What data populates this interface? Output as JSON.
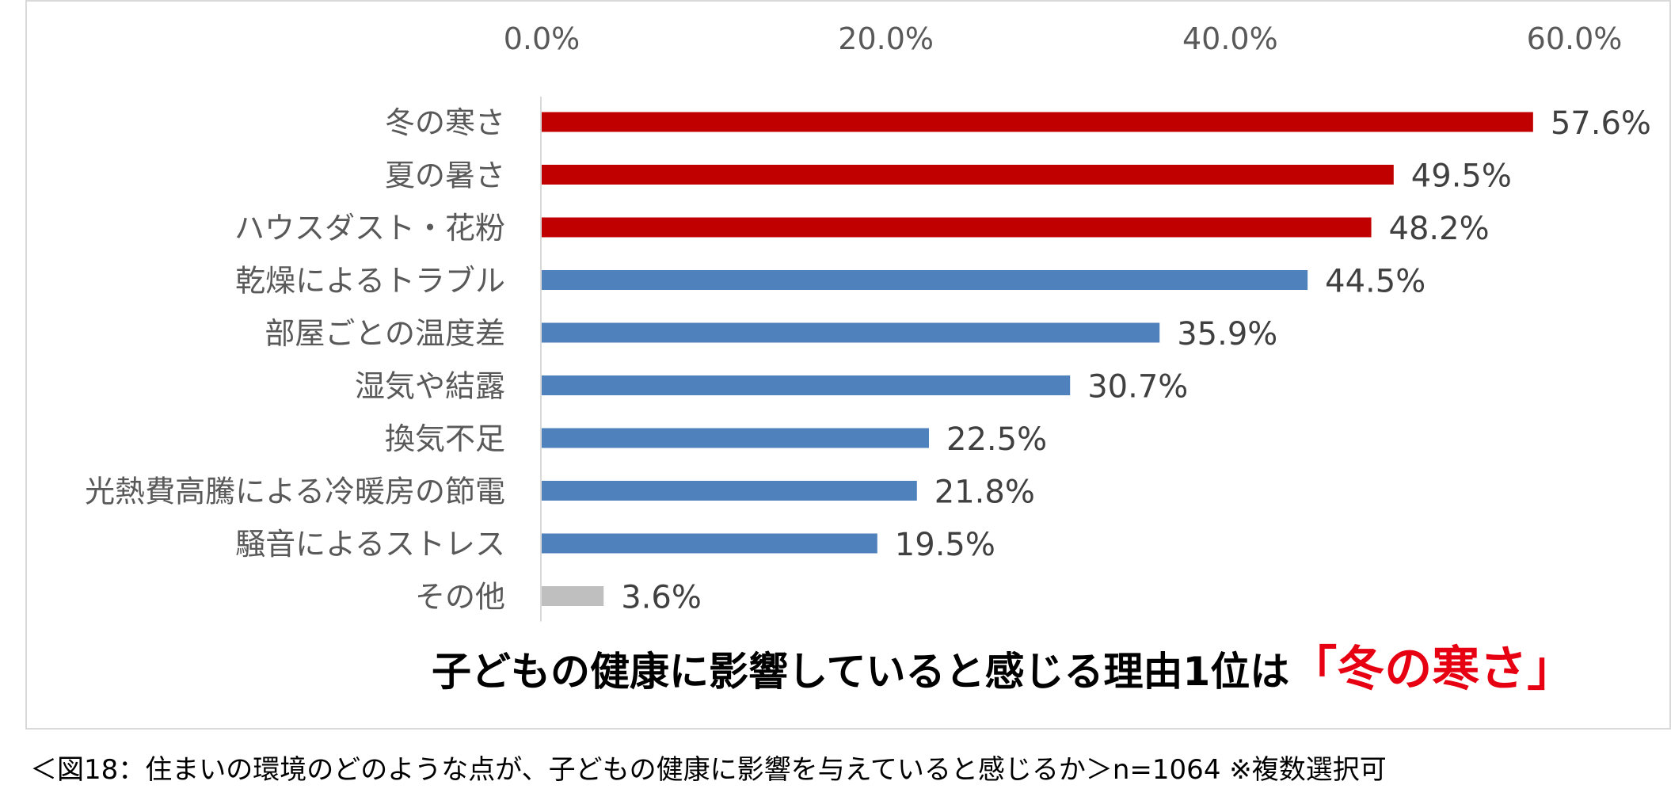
{
  "chart_data": {
    "type": "bar",
    "orientation": "horizontal",
    "categories": [
      "冬の寒さ",
      "夏の暑さ",
      "ハウスダスト・花粉",
      "乾燥によるトラブル",
      "部屋ごとの温度差",
      "湿気や結露",
      "換気不足",
      "光熱費高騰による冷暖房の節電",
      "騒音によるストレス",
      "その他"
    ],
    "values": [
      57.6,
      49.5,
      48.2,
      44.5,
      35.9,
      30.7,
      22.5,
      21.8,
      19.5,
      3.6
    ],
    "value_labels": [
      "57.6%",
      "49.5%",
      "48.2%",
      "44.5%",
      "35.9%",
      "30.7%",
      "22.5%",
      "21.8%",
      "19.5%",
      "3.6%"
    ],
    "bar_colors": [
      "#c00000",
      "#c00000",
      "#c00000",
      "#4f81bd",
      "#4f81bd",
      "#4f81bd",
      "#4f81bd",
      "#4f81bd",
      "#4f81bd",
      "#bfbfbf"
    ],
    "xlim": [
      0,
      60
    ],
    "x_ticks": [
      0,
      20,
      40,
      60
    ],
    "x_tick_labels": [
      "0.0%",
      "20.0%",
      "40.0%",
      "60.0%"
    ],
    "axis_position": "top",
    "grid": false,
    "legend": "none"
  },
  "headline": {
    "text": "子どもの健康に影響していると感じる理由1位は",
    "accent": "「冬の寒さ」",
    "accent_color": "#e60012"
  },
  "caption": "＜図18：住まいの環境のどのような点が、子どもの健康に影響を与えていると感じるか＞n=1064 ※複数選択可"
}
